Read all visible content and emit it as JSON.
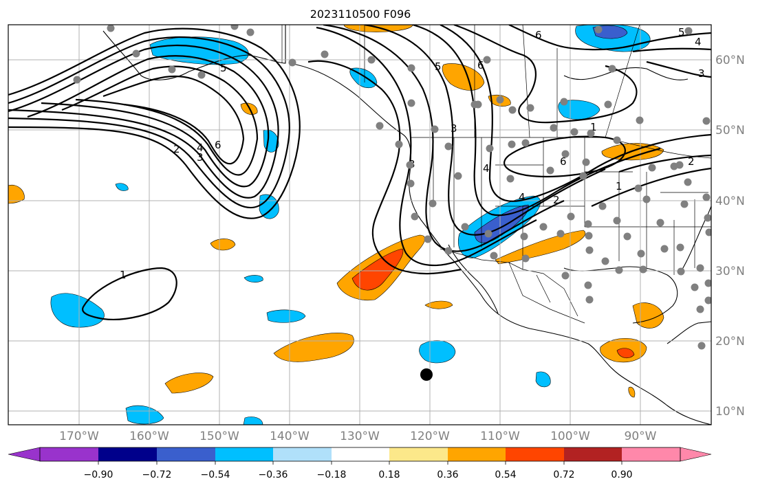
{
  "title": "2023110500 F096",
  "colors": {
    "neg_090": "#9933cc",
    "neg_072": "#00008b",
    "neg_054": "#3a5fcd",
    "neg_036": "#00bfff",
    "neg_018": "#b0e0fa",
    "neutral": "#ffffff",
    "pos_018": "#fce88a",
    "pos_036": "#ffa500",
    "pos_054": "#ff4500",
    "pos_072": "#b22222",
    "pos_090": "#ff88aa",
    "station_dot": "#808080",
    "grid": "#b0b0b0",
    "contour": "#000000"
  },
  "lat_labels": [
    "60°N",
    "50°N",
    "40°N",
    "30°N",
    "20°N",
    "10°N"
  ],
  "lon_labels": [
    "170°W",
    "160°W",
    "150°W",
    "140°W",
    "130°W",
    "120°W",
    "110°W",
    "100°W",
    "90°W"
  ],
  "colorbar": {
    "ticks": [
      "−0.90",
      "−0.72",
      "−0.54",
      "−0.36",
      "−0.18",
      "0.18",
      "0.36",
      "0.54",
      "0.72",
      "0.90"
    ],
    "extend": "both"
  },
  "contour_labels": [
    "5",
    "6",
    "6",
    "5",
    "4",
    "3",
    "2",
    "1",
    "3",
    "6",
    "4",
    "2",
    "1",
    "2",
    "3",
    "4",
    "5",
    "6",
    "3",
    "4",
    "1"
  ],
  "icons": {
    "marker": "black-circle-marker",
    "stations": "grey-dot-station"
  }
}
